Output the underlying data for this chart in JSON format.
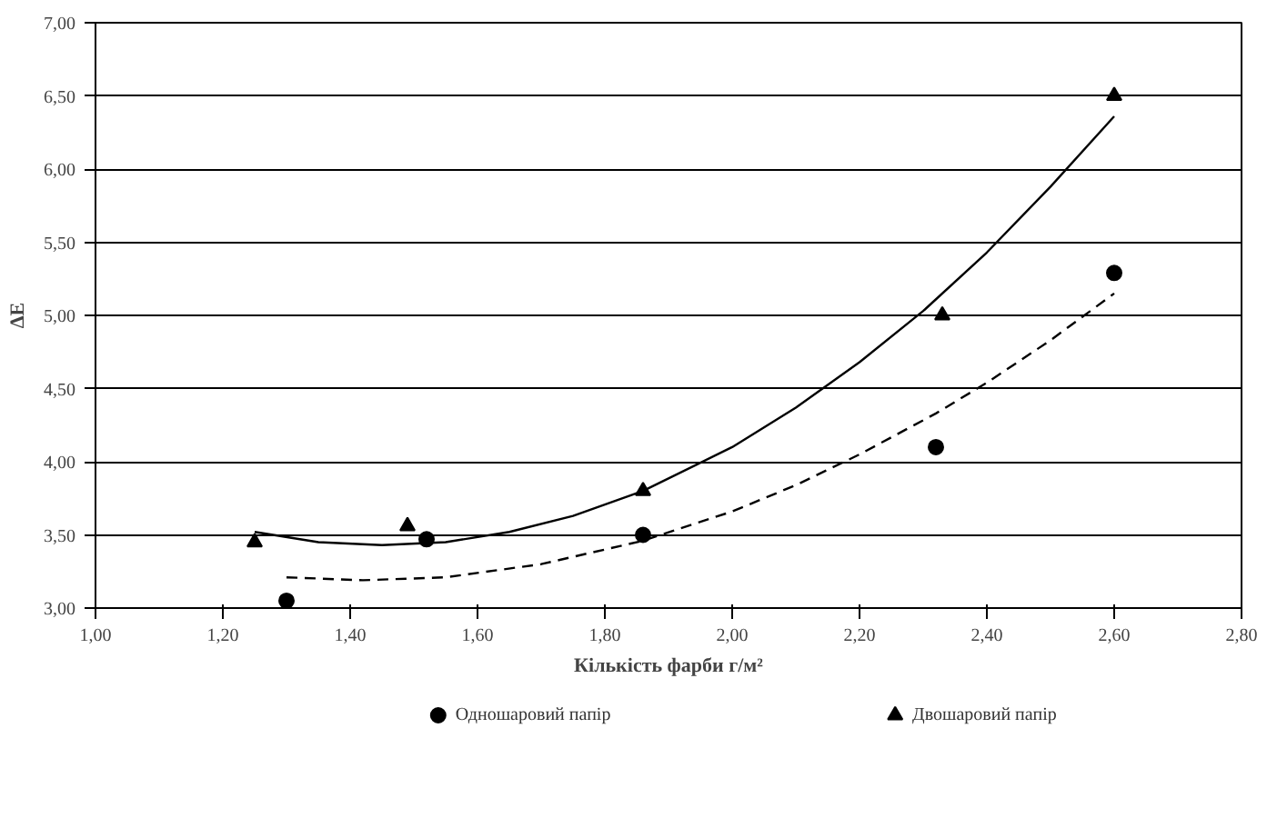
{
  "chart_data": {
    "type": "scatter",
    "xlabel": "Кількість фарби г/м²",
    "ylabel": "ΔE",
    "xlim": [
      1.0,
      2.8
    ],
    "ylim": [
      3.0,
      7.0
    ],
    "xticks": [
      {
        "value": 1.0,
        "label": "1,00"
      },
      {
        "value": 1.2,
        "label": "1,20"
      },
      {
        "value": 1.4,
        "label": "1,40"
      },
      {
        "value": 1.6,
        "label": "1,60"
      },
      {
        "value": 1.8,
        "label": "1,80"
      },
      {
        "value": 2.0,
        "label": "2,00"
      },
      {
        "value": 2.2,
        "label": "2,20"
      },
      {
        "value": 2.4,
        "label": "2,40"
      },
      {
        "value": 2.6,
        "label": "2,60"
      },
      {
        "value": 2.8,
        "label": "2,80"
      }
    ],
    "yticks": [
      {
        "value": 3.0,
        "label": "3,00"
      },
      {
        "value": 3.5,
        "label": "3,50"
      },
      {
        "value": 4.0,
        "label": "4,00"
      },
      {
        "value": 4.5,
        "label": "4,50"
      },
      {
        "value": 5.0,
        "label": "5,00"
      },
      {
        "value": 5.5,
        "label": "5,50"
      },
      {
        "value": 6.0,
        "label": "6,00"
      },
      {
        "value": 6.5,
        "label": "6,50"
      },
      {
        "value": 7.0,
        "label": "7,00"
      }
    ],
    "grid": "y",
    "legend": "bottom",
    "series": [
      {
        "name": "Одношаровий папір",
        "marker": "circle",
        "color": "#000000",
        "x": [
          1.3,
          1.52,
          1.86,
          2.32,
          2.6
        ],
        "values": [
          3.05,
          3.47,
          3.5,
          4.1,
          5.29
        ]
      },
      {
        "name": "Двошаровий папір",
        "marker": "triangle",
        "color": "#000000",
        "x": [
          1.25,
          1.49,
          1.86,
          2.33,
          2.6
        ],
        "values": [
          3.45,
          3.56,
          3.8,
          5.0,
          6.5
        ]
      },
      {
        "type": "line",
        "line_style": "dashed",
        "color": "#000000",
        "x": [
          1.3,
          1.42,
          1.55,
          1.7,
          1.86,
          2.0,
          2.1,
          2.2,
          2.32,
          2.4,
          2.5,
          2.6
        ],
        "values": [
          3.21,
          3.19,
          3.21,
          3.3,
          3.46,
          3.66,
          3.84,
          4.05,
          4.33,
          4.54,
          4.83,
          5.15
        ]
      },
      {
        "type": "line",
        "line_style": "solid",
        "color": "#000000",
        "x": [
          1.25,
          1.35,
          1.45,
          1.55,
          1.65,
          1.75,
          1.86,
          2.0,
          2.1,
          2.2,
          2.3,
          2.4,
          2.5,
          2.6
        ],
        "values": [
          3.52,
          3.45,
          3.43,
          3.45,
          3.52,
          3.63,
          3.8,
          4.1,
          4.37,
          4.68,
          5.03,
          5.43,
          5.88,
          6.36
        ]
      }
    ]
  }
}
